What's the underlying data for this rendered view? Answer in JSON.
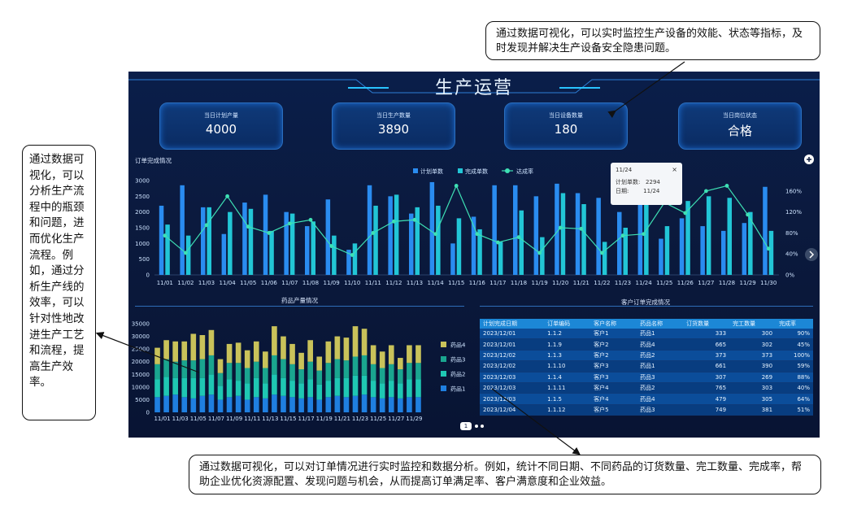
{
  "annotations": {
    "top": "通过数据可视化，可以实时监控生产设备的效能、状态等指标，及时发现并解决生产设备安全隐患问题。",
    "left": "通过数据可视化，可以分析生产流程中的瓶颈和问题，进而优化生产流程。例如，通过分析生产线的效率，可以针对性地改进生产工艺和流程，提高生产效率。",
    "bottom": "通过数据可视化，可以对订单情况进行实时监控和数据分析。例如，统计不同日期、不同药品的订货数量、完工数量、完成率，帮助企业优化资源配置、发现问题与机会，从而提高订单满足率、客户满意度和企业效益。"
  },
  "dashboard": {
    "title": "生产运营",
    "kpis": [
      {
        "label": "当日计划产量",
        "value": "4000"
      },
      {
        "label": "当日生产数量",
        "value": "3890"
      },
      {
        "label": "当日设备数量",
        "value": "180"
      },
      {
        "label": "当日岗位状态",
        "value": "合格"
      }
    ],
    "order_section_title": "订单完成情况",
    "drug_section_title": "药品产量情况",
    "customer_section_title": "客户订单完成情况",
    "tooltip": {
      "date": "11/24",
      "plan_label": "计划单数:",
      "plan_value": "2294",
      "date_label": "日期:",
      "date_value": "11/24"
    },
    "pager": "1",
    "colors": {
      "plan": "#2a8cf0",
      "done": "#22c6d6",
      "rate": "#3ee0b4",
      "drug1": "#1f7fe0",
      "drug2": "#1fc7b3",
      "drug3": "#1aa58f",
      "drug4": "#c9c25a"
    }
  },
  "chart_data": [
    {
      "type": "bar",
      "title": "订单完成情况",
      "categories": [
        "11/01",
        "11/02",
        "11/03",
        "11/04",
        "11/05",
        "11/06",
        "11/07",
        "11/08",
        "11/09",
        "11/10",
        "11/11",
        "11/12",
        "11/13",
        "11/14",
        "11/15",
        "11/16",
        "11/17",
        "11/18",
        "11/19",
        "11/20",
        "11/21",
        "11/22",
        "11/23",
        "11/24",
        "11/25",
        "11/26",
        "11/27",
        "11/28",
        "11/29",
        "11/30"
      ],
      "series": [
        {
          "name": "计划单数",
          "values": [
            2200,
            2850,
            2150,
            1300,
            2300,
            2550,
            2000,
            1550,
            2400,
            800,
            2850,
            2500,
            1950,
            2950,
            1000,
            1850,
            2850,
            2850,
            2500,
            2900,
            2600,
            2450,
            2000,
            2294,
            1150,
            1800,
            1550,
            1400,
            1650,
            2800
          ]
        },
        {
          "name": "完成单数",
          "values": [
            1600,
            1250,
            2150,
            2000,
            2100,
            1400,
            1950,
            1700,
            1250,
            1000,
            2200,
            2550,
            2150,
            2200,
            1800,
            1450,
            1050,
            2050,
            1200,
            2600,
            2250,
            1050,
            1500,
            2500,
            1550,
            2350,
            2500,
            2450,
            2000,
            1400
          ]
        },
        {
          "name": "达成率",
          "values": [
            75,
            42,
            95,
            150,
            92,
            80,
            98,
            105,
            55,
            38,
            80,
            102,
            105,
            78,
            170,
            78,
            62,
            72,
            42,
            90,
            88,
            42,
            75,
            78,
            138,
            118,
            160,
            170,
            115,
            50
          ]
        }
      ],
      "ylim": [
        0,
        3000
      ],
      "y_ticks": [
        "0",
        "500",
        "1000",
        "1500",
        "2000",
        "2500",
        "3000"
      ],
      "y2lim": [
        0,
        180
      ],
      "y2_ticks": [
        "0%",
        "40%",
        "80%",
        "120%",
        "160%"
      ],
      "legend": "top-center"
    },
    {
      "type": "bar",
      "title": "药品产量情况",
      "stacked": true,
      "categories": [
        "11/01",
        "11/02",
        "11/03",
        "11/04",
        "11/05",
        "11/06",
        "11/07",
        "11/08",
        "11/09",
        "11/10",
        "11/11",
        "11/12",
        "11/13",
        "11/14",
        "11/15",
        "11/16",
        "11/17",
        "11/18",
        "11/19",
        "11/20",
        "11/21",
        "11/22",
        "11/23",
        "11/24",
        "11/25",
        "11/26",
        "11/27",
        "11/28",
        "11/29",
        "11/30"
      ],
      "x_tick_labels": [
        "11/01",
        "11/03",
        "11/05",
        "11/07",
        "11/09",
        "11/11",
        "11/13",
        "11/15",
        "11/17",
        "11/19",
        "11/21",
        "11/23",
        "11/25",
        "11/27",
        "11/29"
      ],
      "series": [
        {
          "name": "药品1",
          "values": [
            6000,
            6500,
            7000,
            6000,
            5500,
            6500,
            7000,
            5000,
            6000,
            6500,
            5000,
            6000,
            5500,
            7000,
            6500,
            6000,
            5500,
            6000,
            5000,
            6000,
            6500,
            6000,
            6500,
            7000,
            6000,
            5500,
            6000,
            5500,
            6000,
            6000
          ]
        },
        {
          "name": "药品2",
          "values": [
            7000,
            7500,
            6500,
            7500,
            8000,
            7000,
            8000,
            5500,
            7000,
            6000,
            6500,
            7500,
            6000,
            8000,
            7000,
            6500,
            6000,
            7000,
            6000,
            6500,
            7000,
            7500,
            8000,
            7500,
            6500,
            6000,
            6500,
            6000,
            7000,
            7000
          ]
        },
        {
          "name": "药品3",
          "values": [
            6000,
            7000,
            6500,
            7000,
            7000,
            7500,
            7500,
            5000,
            6500,
            7000,
            6000,
            6500,
            6000,
            7500,
            7500,
            6500,
            5500,
            7000,
            5500,
            7000,
            7500,
            7000,
            7500,
            8000,
            6500,
            6000,
            6500,
            5500,
            6500,
            6500
          ]
        },
        {
          "name": "药品4",
          "values": [
            6500,
            7500,
            8000,
            7500,
            10500,
            9500,
            10000,
            5500,
            7500,
            8000,
            7000,
            8000,
            6500,
            11500,
            9000,
            8000,
            6500,
            8500,
            5500,
            8500,
            9000,
            9000,
            12000,
            10500,
            7500,
            6500,
            7500,
            4500,
            7000,
            7000
          ]
        }
      ],
      "ylim": [
        0,
        35000
      ],
      "y_ticks": [
        "0",
        "5000",
        "10000",
        "15000",
        "20000",
        "25000",
        "30000",
        "35000"
      ],
      "legend": "right"
    },
    {
      "type": "table",
      "title": "客户订单完成情况",
      "columns": [
        "计划完成日期",
        "订单编码",
        "客户名称",
        "药品名称",
        "订货数量",
        "完工数量",
        "完成率"
      ],
      "rows": [
        [
          "2023/12/01",
          "1.1.2",
          "客户1",
          "药品1",
          "333",
          "300",
          "90%"
        ],
        [
          "2023/12/01",
          "1.1.9",
          "客户2",
          "药品4",
          "665",
          "302",
          "45%"
        ],
        [
          "2023/12/02",
          "1.1.3",
          "客户2",
          "药品2",
          "373",
          "373",
          "100%"
        ],
        [
          "2023/12/02",
          "1.1.10",
          "客户3",
          "药品1",
          "661",
          "390",
          "59%"
        ],
        [
          "2023/12/03",
          "1.1.4",
          "客户3",
          "药品3",
          "307",
          "269",
          "88%"
        ],
        [
          "2023/12/03",
          "1.1.11",
          "客户4",
          "药品2",
          "765",
          "303",
          "40%"
        ],
        [
          "2023/12/03",
          "1.1.5",
          "客户4",
          "药品4",
          "479",
          "305",
          "64%"
        ],
        [
          "2023/12/04",
          "1.1.12",
          "客户5",
          "药品3",
          "749",
          "381",
          "51%"
        ]
      ]
    }
  ]
}
